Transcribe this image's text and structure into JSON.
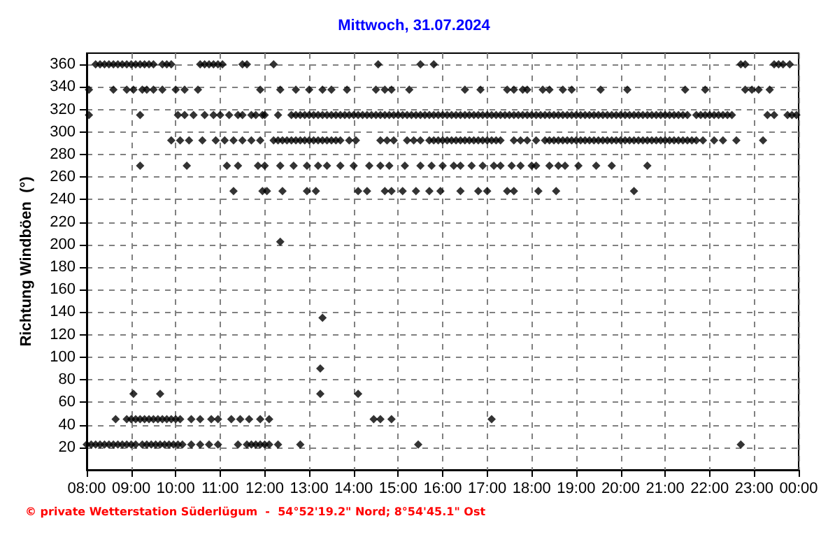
{
  "chart_data": {
    "type": "scatter",
    "title": "Mittwoch, 31.07.2024",
    "ylabel": "Richtung Windböen  (°)",
    "annotations": [
      "© private Wetterstation Süderlügum  -  54°52'19.2\" Nord; 8°54'45.1\" Ost"
    ],
    "xlim": [
      8,
      24
    ],
    "xticks": [
      {
        "value": 8,
        "label": "08:00"
      },
      {
        "value": 9,
        "label": "09:00"
      },
      {
        "value": 10,
        "label": "10:00"
      },
      {
        "value": 11,
        "label": "11:00"
      },
      {
        "value": 12,
        "label": "12:00"
      },
      {
        "value": 13,
        "label": "13:00"
      },
      {
        "value": 14,
        "label": "14:00"
      },
      {
        "value": 15,
        "label": "15:00"
      },
      {
        "value": 16,
        "label": "16:00"
      },
      {
        "value": 17,
        "label": "17:00"
      },
      {
        "value": 18,
        "label": "18:00"
      },
      {
        "value": 19,
        "label": "19:00"
      },
      {
        "value": 20,
        "label": "20:00"
      },
      {
        "value": 21,
        "label": "21:00"
      },
      {
        "value": 22,
        "label": "22:00"
      },
      {
        "value": 23,
        "label": "23:00"
      },
      {
        "value": 24,
        "label": "00:00"
      }
    ],
    "ylim": [
      0,
      370
    ],
    "yticks": [
      20,
      40,
      60,
      80,
      100,
      120,
      140,
      160,
      180,
      200,
      220,
      240,
      260,
      280,
      300,
      320,
      340,
      360
    ],
    "grid": true,
    "marker": "diamond",
    "series": [
      {
        "color": "#000000",
        "x": [
          8.2,
          8.3,
          8.4,
          8.5,
          8.6,
          8.7,
          8.8,
          8.9,
          9.0,
          9.1,
          9.2,
          9.3,
          9.4,
          9.5,
          9.7,
          9.8,
          9.9,
          10.55,
          10.65,
          10.75,
          10.85,
          10.95,
          11.05,
          11.5,
          11.6,
          12.2,
          14.55,
          15.5,
          15.8,
          22.7,
          22.8,
          23.45,
          23.55,
          23.65,
          23.8
        ],
        "values": [
          360,
          360,
          360,
          360,
          360,
          360,
          360,
          360,
          360,
          360,
          360,
          360,
          360,
          360,
          360,
          360,
          360,
          360,
          360,
          360,
          360,
          360,
          360,
          360,
          360,
          360,
          360,
          360,
          360,
          360,
          360,
          360,
          360,
          360,
          360
        ]
      },
      {
        "color": "#000000",
        "x": [
          8.05,
          8.6,
          8.9,
          9.05,
          9.25,
          9.35,
          9.5,
          9.7,
          10.0,
          10.2,
          10.5,
          11.9,
          12.35,
          12.7,
          13.0,
          13.3,
          13.5,
          13.85,
          14.5,
          14.7,
          14.85,
          15.25,
          16.5,
          16.85,
          17.45,
          17.6,
          17.8,
          17.9,
          18.25,
          18.4,
          18.7,
          18.9,
          19.55,
          20.15,
          21.45,
          21.9,
          22.8,
          22.95,
          23.1,
          23.35
        ],
        "values": [
          337.5,
          337.5,
          337.5,
          337.5,
          337.5,
          337.5,
          337.5,
          337.5,
          337.5,
          337.5,
          337.5,
          337.5,
          337.5,
          337.5,
          337.5,
          337.5,
          337.5,
          337.5,
          337.5,
          337.5,
          337.5,
          337.5,
          337.5,
          337.5,
          337.5,
          337.5,
          337.5,
          337.5,
          337.5,
          337.5,
          337.5,
          337.5,
          337.5,
          337.5,
          337.5,
          337.5,
          337.5,
          337.5,
          337.5,
          337.5
        ]
      },
      {
        "color": "#000000",
        "x": [
          8.05,
          9.2,
          10.05,
          10.2,
          10.4,
          10.65,
          10.85,
          11.0,
          11.2,
          11.4,
          11.5,
          11.7,
          11.8,
          11.95,
          12.0,
          12.3,
          12.6,
          12.7,
          12.8,
          12.9,
          13.0,
          13.1,
          13.2,
          13.3,
          13.4,
          13.5,
          13.6,
          13.7,
          13.8,
          13.9,
          14.0,
          14.1,
          14.2,
          14.3,
          14.4,
          14.5,
          14.6,
          14.7,
          14.8,
          14.9,
          15.0,
          15.1,
          15.2,
          15.3,
          15.4,
          15.5,
          15.6,
          15.7,
          15.8,
          15.9,
          16.0,
          16.1,
          16.2,
          16.3,
          16.4,
          16.5,
          16.6,
          16.7,
          16.8,
          16.9,
          17.0,
          17.1,
          17.2,
          17.3,
          17.4,
          17.5,
          17.6,
          17.7,
          17.8,
          17.9,
          18.0,
          18.1,
          18.2,
          18.3,
          18.4,
          18.5,
          18.6,
          18.7,
          18.8,
          18.9,
          19.0,
          19.1,
          19.2,
          19.3,
          19.4,
          19.5,
          19.6,
          19.7,
          19.8,
          19.9,
          20.0,
          20.1,
          20.2,
          20.3,
          20.4,
          20.5,
          20.6,
          20.7,
          20.8,
          20.9,
          21.0,
          21.1,
          21.2,
          21.3,
          21.4,
          21.5,
          21.7,
          21.8,
          21.9,
          22.0,
          22.1,
          22.2,
          22.3,
          22.4,
          22.5,
          23.3,
          23.45,
          23.75,
          23.85,
          23.95
        ],
        "values": [
          315,
          315,
          315,
          315,
          315,
          315,
          315,
          315,
          315,
          315,
          315,
          315,
          315,
          315,
          315,
          315,
          315,
          315,
          315,
          315,
          315,
          315,
          315,
          315,
          315,
          315,
          315,
          315,
          315,
          315,
          315,
          315,
          315,
          315,
          315,
          315,
          315,
          315,
          315,
          315,
          315,
          315,
          315,
          315,
          315,
          315,
          315,
          315,
          315,
          315,
          315,
          315,
          315,
          315,
          315,
          315,
          315,
          315,
          315,
          315,
          315,
          315,
          315,
          315,
          315,
          315,
          315,
          315,
          315,
          315,
          315,
          315,
          315,
          315,
          315,
          315,
          315,
          315,
          315,
          315,
          315,
          315,
          315,
          315,
          315,
          315,
          315,
          315,
          315,
          315,
          315,
          315,
          315,
          315,
          315,
          315,
          315,
          315,
          315,
          315,
          315,
          315,
          315,
          315,
          315,
          315,
          315,
          315,
          315,
          315,
          315,
          315,
          315,
          315,
          315,
          315,
          315,
          315,
          315,
          315
        ]
      },
      {
        "color": "#000000",
        "x": [
          9.9,
          10.1,
          10.3,
          10.6,
          10.9,
          11.1,
          11.3,
          11.5,
          11.7,
          11.9,
          12.2,
          12.3,
          12.4,
          12.5,
          12.6,
          12.7,
          12.8,
          12.9,
          13.0,
          13.1,
          13.2,
          13.3,
          13.4,
          13.5,
          13.6,
          13.7,
          13.9,
          14.05,
          14.6,
          14.75,
          14.9,
          15.2,
          15.35,
          15.5,
          15.7,
          15.8,
          15.9,
          16.0,
          16.1,
          16.2,
          16.3,
          16.4,
          16.5,
          16.6,
          16.7,
          16.8,
          16.9,
          17.0,
          17.1,
          17.2,
          17.3,
          17.6,
          17.75,
          17.9,
          18.1,
          18.3,
          18.4,
          18.5,
          18.6,
          18.7,
          18.8,
          18.9,
          19.0,
          19.1,
          19.2,
          19.3,
          19.4,
          19.5,
          19.6,
          19.7,
          19.8,
          19.9,
          20.0,
          20.1,
          20.2,
          20.3,
          20.4,
          20.5,
          20.6,
          20.7,
          20.8,
          20.9,
          21.0,
          21.1,
          21.2,
          21.3,
          21.4,
          21.5,
          21.6,
          21.7,
          21.85,
          22.1,
          22.3,
          22.6,
          23.2
        ],
        "values": [
          292.5,
          292.5,
          292.5,
          292.5,
          292.5,
          292.5,
          292.5,
          292.5,
          292.5,
          292.5,
          292.5,
          292.5,
          292.5,
          292.5,
          292.5,
          292.5,
          292.5,
          292.5,
          292.5,
          292.5,
          292.5,
          292.5,
          292.5,
          292.5,
          292.5,
          292.5,
          292.5,
          292.5,
          292.5,
          292.5,
          292.5,
          292.5,
          292.5,
          292.5,
          292.5,
          292.5,
          292.5,
          292.5,
          292.5,
          292.5,
          292.5,
          292.5,
          292.5,
          292.5,
          292.5,
          292.5,
          292.5,
          292.5,
          292.5,
          292.5,
          292.5,
          292.5,
          292.5,
          292.5,
          292.5,
          292.5,
          292.5,
          292.5,
          292.5,
          292.5,
          292.5,
          292.5,
          292.5,
          292.5,
          292.5,
          292.5,
          292.5,
          292.5,
          292.5,
          292.5,
          292.5,
          292.5,
          292.5,
          292.5,
          292.5,
          292.5,
          292.5,
          292.5,
          292.5,
          292.5,
          292.5,
          292.5,
          292.5,
          292.5,
          292.5,
          292.5,
          292.5,
          292.5,
          292.5,
          292.5,
          292.5,
          292.5,
          292.5,
          292.5,
          292.5
        ]
      },
      {
        "color": "#000000",
        "x": [
          9.2,
          10.25,
          11.15,
          11.4,
          11.85,
          12.0,
          12.35,
          12.65,
          12.95,
          13.2,
          13.4,
          13.7,
          14.0,
          14.35,
          14.6,
          14.8,
          15.15,
          15.5,
          15.75,
          16.0,
          16.25,
          16.4,
          16.65,
          16.9,
          17.15,
          17.3,
          17.55,
          17.75,
          18.0,
          18.1,
          18.4,
          18.6,
          18.75,
          19.05,
          19.45,
          19.8,
          20.6
        ],
        "values": [
          270,
          270,
          270,
          270,
          270,
          270,
          270,
          270,
          270,
          270,
          270,
          270,
          270,
          270,
          270,
          270,
          270,
          270,
          270,
          270,
          270,
          270,
          270,
          270,
          270,
          270,
          270,
          270,
          270,
          270,
          270,
          270,
          270,
          270,
          270,
          270,
          270
        ]
      },
      {
        "color": "#000000",
        "x": [
          11.3,
          11.95,
          12.05,
          12.4,
          12.95,
          13.15,
          14.1,
          14.3,
          14.7,
          14.85,
          15.1,
          15.4,
          15.7,
          15.95,
          16.4,
          16.8,
          17.0,
          17.45,
          17.6,
          18.15,
          18.55,
          20.3
        ],
        "values": [
          247.5,
          247.5,
          247.5,
          247.5,
          247.5,
          247.5,
          247.5,
          247.5,
          247.5,
          247.5,
          247.5,
          247.5,
          247.5,
          247.5,
          247.5,
          247.5,
          247.5,
          247.5,
          247.5,
          247.5,
          247.5,
          247.5
        ]
      },
      {
        "color": "#000000",
        "x": [
          12.35
        ],
        "values": [
          202.5
        ]
      },
      {
        "color": "#000000",
        "x": [
          13.3
        ],
        "values": [
          135
        ]
      },
      {
        "color": "#000000",
        "x": [
          13.25
        ],
        "values": [
          90
        ]
      },
      {
        "color": "#000000",
        "x": [
          9.05,
          9.65,
          13.25,
          14.1
        ],
        "values": [
          67.5,
          67.5,
          67.5,
          67.5
        ]
      },
      {
        "color": "#000000",
        "x": [
          8.65,
          8.9,
          9.0,
          9.1,
          9.2,
          9.3,
          9.4,
          9.5,
          9.6,
          9.7,
          9.8,
          9.9,
          10.0,
          10.1,
          10.35,
          10.55,
          10.8,
          10.95,
          11.25,
          11.45,
          11.65,
          11.9,
          12.1,
          14.45,
          14.6,
          14.85,
          17.1
        ],
        "values": [
          45,
          45,
          45,
          45,
          45,
          45,
          45,
          45,
          45,
          45,
          45,
          45,
          45,
          45,
          45,
          45,
          45,
          45,
          45,
          45,
          45,
          45,
          45,
          45,
          45,
          45,
          45
        ]
      },
      {
        "color": "#000000",
        "x": [
          8.0,
          8.1,
          8.2,
          8.3,
          8.4,
          8.5,
          8.6,
          8.7,
          8.8,
          8.9,
          9.0,
          9.1,
          9.25,
          9.35,
          9.45,
          9.55,
          9.65,
          9.75,
          9.85,
          9.95,
          10.05,
          10.15,
          10.35,
          10.55,
          10.75,
          10.95,
          11.4,
          11.6,
          11.7,
          11.8,
          11.9,
          12.0,
          12.1,
          12.3,
          12.8,
          15.45,
          22.7
        ],
        "values": [
          22.5,
          22.5,
          22.5,
          22.5,
          22.5,
          22.5,
          22.5,
          22.5,
          22.5,
          22.5,
          22.5,
          22.5,
          22.5,
          22.5,
          22.5,
          22.5,
          22.5,
          22.5,
          22.5,
          22.5,
          22.5,
          22.5,
          22.5,
          22.5,
          22.5,
          22.5,
          22.5,
          22.5,
          22.5,
          22.5,
          22.5,
          22.5,
          22.5,
          22.5,
          22.5,
          22.5,
          22.5
        ]
      }
    ]
  }
}
